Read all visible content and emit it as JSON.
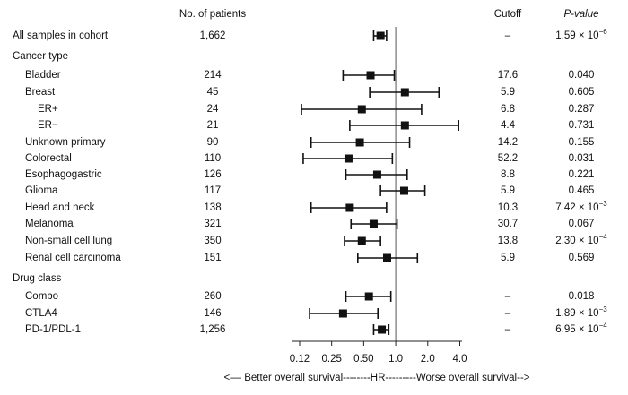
{
  "chart_data": {
    "type": "forest",
    "x_scale": "log2",
    "xlim": [
      0.105,
      4.2
    ],
    "x_ticks": [
      "0.12",
      "0.25",
      "0.50",
      "1.0",
      "2.0",
      "4.0"
    ],
    "x_tick_values": [
      0.125,
      0.25,
      0.5,
      1.0,
      2.0,
      4.0
    ],
    "reference_line": 1.0,
    "xlabel": "<–– Better overall survival--------HR---------Worse overall survival-->",
    "columns": {
      "patients": "No. of patients",
      "cutoff": "Cutoff",
      "pvalue": "P-value"
    },
    "rows": [
      {
        "kind": "data",
        "label": "All samples in cohort",
        "indent": 0,
        "n": "1,662",
        "hr": 0.72,
        "lo": 0.62,
        "hi": 0.82,
        "cutoff": "–",
        "p": "1.59 × 10",
        "p_exp": "−6"
      },
      {
        "kind": "group",
        "label": "Cancer type"
      },
      {
        "kind": "data",
        "label": "Bladder",
        "indent": 1,
        "n": "214",
        "hr": 0.58,
        "lo": 0.32,
        "hi": 0.97,
        "cutoff": "17.6",
        "p": "0.040"
      },
      {
        "kind": "data",
        "label": "Breast",
        "indent": 1,
        "n": "45",
        "hr": 1.22,
        "lo": 0.57,
        "hi": 2.55,
        "cutoff": "5.9",
        "p": "0.605"
      },
      {
        "kind": "data",
        "label": "ER+",
        "indent": 2,
        "n": "24",
        "hr": 0.48,
        "lo": 0.13,
        "hi": 1.75,
        "cutoff": "6.8",
        "p": "0.287"
      },
      {
        "kind": "data",
        "label": "ER−",
        "indent": 2,
        "n": "21",
        "hr": 1.22,
        "lo": 0.37,
        "hi": 3.9,
        "cutoff": "4.4",
        "p": "0.731"
      },
      {
        "kind": "data",
        "label": "Unknown primary",
        "indent": 1,
        "n": "90",
        "hr": 0.46,
        "lo": 0.16,
        "hi": 1.35,
        "cutoff": "14.2",
        "p": "0.155"
      },
      {
        "kind": "data",
        "label": "Colorectal",
        "indent": 1,
        "n": "110",
        "hr": 0.36,
        "lo": 0.135,
        "hi": 0.93,
        "cutoff": "52.2",
        "p": "0.031"
      },
      {
        "kind": "data",
        "label": "Esophagogastric",
        "indent": 1,
        "n": "126",
        "hr": 0.67,
        "lo": 0.34,
        "hi": 1.28,
        "cutoff": "8.8",
        "p": "0.221"
      },
      {
        "kind": "data",
        "label": "Glioma",
        "indent": 1,
        "n": "117",
        "hr": 1.2,
        "lo": 0.72,
        "hi": 1.88,
        "cutoff": "5.9",
        "p": "0.465"
      },
      {
        "kind": "data",
        "label": "Head and neck",
        "indent": 1,
        "n": "138",
        "hr": 0.37,
        "lo": 0.16,
        "hi": 0.82,
        "cutoff": "10.3",
        "p": "7.42 × 10",
        "p_exp": "−3"
      },
      {
        "kind": "data",
        "label": "Melanoma",
        "indent": 1,
        "n": "321",
        "hr": 0.62,
        "lo": 0.38,
        "hi": 1.03,
        "cutoff": "30.7",
        "p": "0.067"
      },
      {
        "kind": "data",
        "label": "Non-small cell lung",
        "indent": 1,
        "n": "350",
        "hr": 0.48,
        "lo": 0.33,
        "hi": 0.72,
        "cutoff": "13.8",
        "p": "2.30 × 10",
        "p_exp": "−4"
      },
      {
        "kind": "data",
        "label": "Renal cell carcinoma",
        "indent": 1,
        "n": "151",
        "hr": 0.83,
        "lo": 0.44,
        "hi": 1.6,
        "cutoff": "5.9",
        "p": "0.569"
      },
      {
        "kind": "group",
        "label": "Drug class"
      },
      {
        "kind": "data",
        "label": "Combo",
        "indent": 1,
        "n": "260",
        "hr": 0.56,
        "lo": 0.34,
        "hi": 0.9,
        "cutoff": "–",
        "p": "0.018"
      },
      {
        "kind": "data",
        "label": "CTLA4",
        "indent": 1,
        "n": "146",
        "hr": 0.32,
        "lo": 0.155,
        "hi": 0.68,
        "cutoff": "–",
        "p": "1.89 × 10",
        "p_exp": "−3"
      },
      {
        "kind": "data",
        "label": "PD-1/PDL-1",
        "indent": 1,
        "n": "1,256",
        "hr": 0.74,
        "lo": 0.62,
        "hi": 0.86,
        "cutoff": "–",
        "p": "6.95 × 10",
        "p_exp": "−4"
      }
    ]
  }
}
